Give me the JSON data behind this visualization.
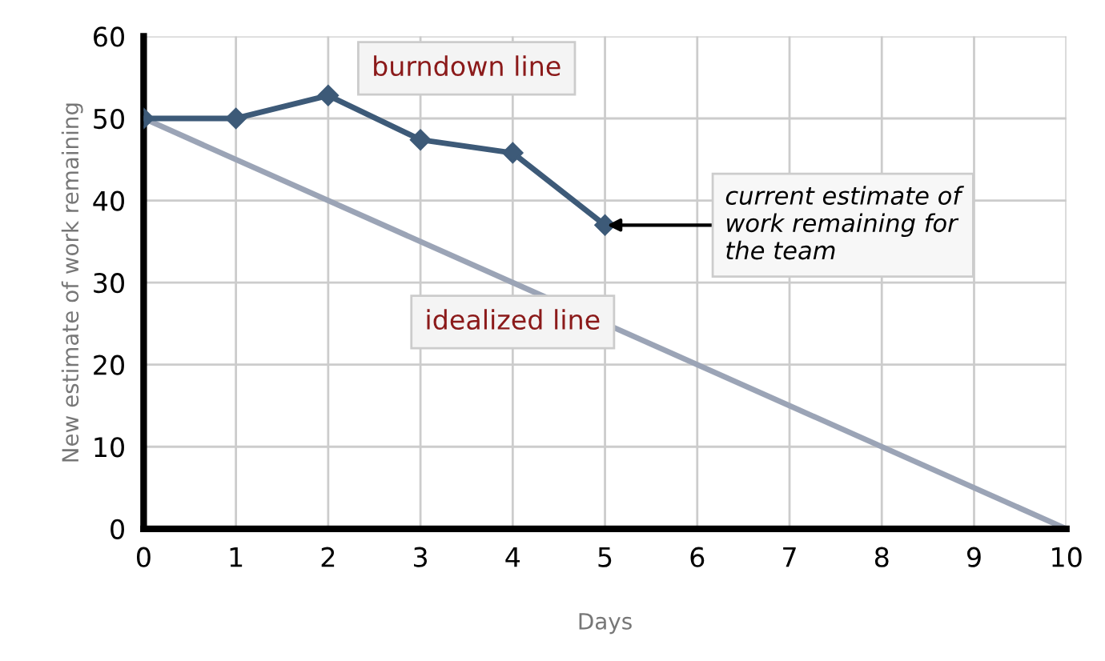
{
  "chart_data": {
    "type": "line",
    "xlabel": "Days",
    "ylabel": "New estimate of work remaining",
    "xlim": [
      0,
      10
    ],
    "ylim": [
      0,
      60
    ],
    "xticks": [
      0,
      1,
      2,
      3,
      4,
      5,
      6,
      7,
      8,
      9,
      10
    ],
    "yticks": [
      0,
      10,
      20,
      30,
      40,
      50,
      60
    ],
    "grid": true,
    "legend": false,
    "line_style": "solid",
    "series": [
      {
        "name": "burndown line",
        "color": "#3d5a78",
        "marker": "diamond",
        "x": [
          0,
          1,
          2,
          3,
          4,
          5
        ],
        "values": [
          50,
          50,
          52.8,
          47.4,
          45.8,
          37
        ]
      },
      {
        "name": "idealized line",
        "color": "#9ba4b6",
        "marker": "none",
        "x": [
          0,
          10
        ],
        "values": [
          50,
          0
        ]
      }
    ],
    "annotations": [
      {
        "text": "current estimate of\nwork remaining for\nthe team",
        "x": 5,
        "y": 37
      }
    ]
  }
}
